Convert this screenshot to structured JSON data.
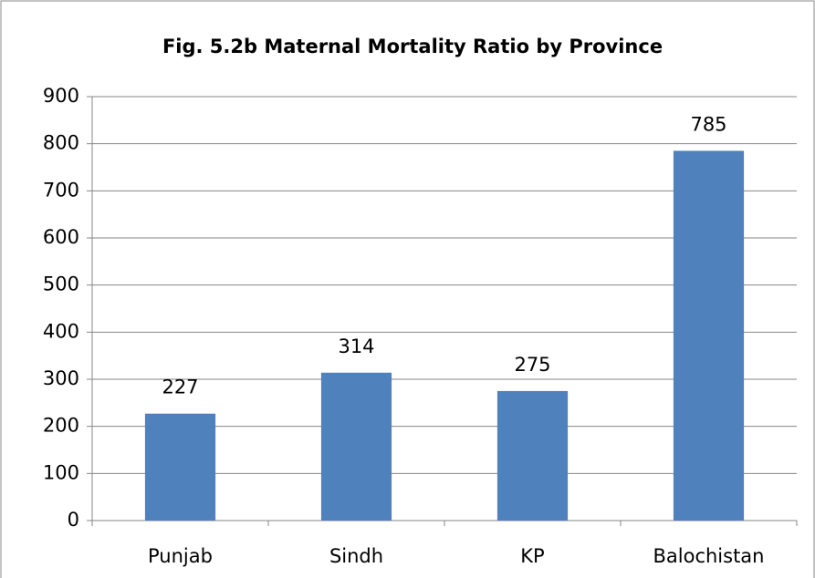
{
  "chart_data": {
    "type": "bar",
    "title": "Fig. 5.2b Maternal Mortality Ratio by Province",
    "categories": [
      "Punjab",
      "Sindh",
      "KP",
      "Balochistan"
    ],
    "values": [
      227,
      314,
      275,
      785
    ],
    "color": "#4f81bd",
    "ylim": [
      0,
      900
    ],
    "yticks": [
      0,
      100,
      200,
      300,
      400,
      500,
      600,
      700,
      800,
      900
    ],
    "grid": true
  }
}
